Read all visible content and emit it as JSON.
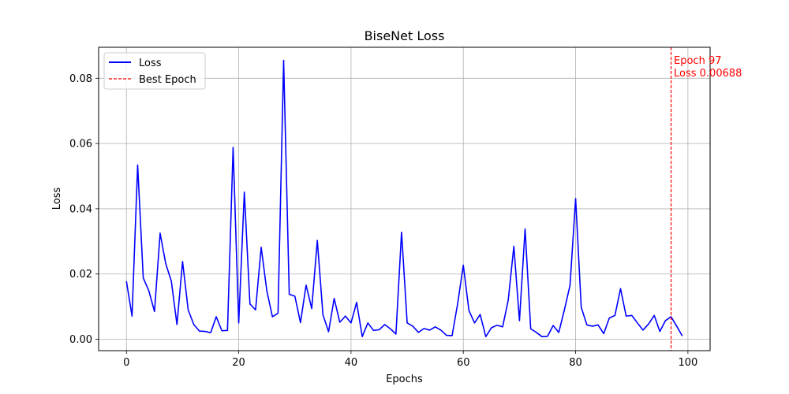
{
  "chart_data": {
    "type": "line",
    "title": "BiseNet Loss",
    "xlabel": "Epochs",
    "ylabel": "Loss",
    "xlim": [
      -4.95,
      103.95
    ],
    "ylim": [
      -0.0035,
      0.0895
    ],
    "xticks": [
      0,
      20,
      40,
      60,
      80,
      100
    ],
    "yticks": [
      0.0,
      0.02,
      0.04,
      0.06,
      0.08
    ],
    "xtick_labels": [
      "0",
      "20",
      "40",
      "60",
      "80",
      "100"
    ],
    "ytick_labels": [
      "0.00",
      "0.02",
      "0.04",
      "0.06",
      "0.08"
    ],
    "grid": true,
    "legend_position": "top-left",
    "series": [
      {
        "name": "Loss",
        "color": "#0000ff",
        "x": [
          0,
          1,
          2,
          3,
          4,
          5,
          6,
          7,
          8,
          9,
          10,
          11,
          12,
          13,
          14,
          15,
          16,
          17,
          18,
          19,
          20,
          21,
          22,
          23,
          24,
          25,
          26,
          27,
          28,
          29,
          30,
          31,
          32,
          33,
          34,
          35,
          36,
          37,
          38,
          39,
          40,
          41,
          42,
          43,
          44,
          45,
          46,
          47,
          48,
          49,
          50,
          51,
          52,
          53,
          54,
          55,
          56,
          57,
          58,
          59,
          60,
          61,
          62,
          63,
          64,
          65,
          66,
          67,
          68,
          69,
          70,
          71,
          72,
          73,
          74,
          75,
          76,
          77,
          78,
          79,
          80,
          81,
          82,
          83,
          84,
          85,
          86,
          87,
          88,
          89,
          90,
          91,
          92,
          93,
          94,
          95,
          96,
          97,
          98,
          99
        ],
        "y": [
          0.0178,
          0.0071,
          0.0534,
          0.0188,
          0.0148,
          0.0085,
          0.0325,
          0.0232,
          0.0178,
          0.0045,
          0.0238,
          0.009,
          0.0045,
          0.0025,
          0.0024,
          0.002,
          0.0069,
          0.0026,
          0.0027,
          0.0588,
          0.005,
          0.0451,
          0.0108,
          0.009,
          0.0282,
          0.0149,
          0.0069,
          0.008,
          0.0855,
          0.0138,
          0.0132,
          0.0051,
          0.0166,
          0.0094,
          0.0303,
          0.0075,
          0.0023,
          0.0125,
          0.0052,
          0.0071,
          0.005,
          0.0113,
          0.0008,
          0.005,
          0.0027,
          0.0029,
          0.0045,
          0.0032,
          0.0016,
          0.0328,
          0.005,
          0.004,
          0.0021,
          0.0033,
          0.0028,
          0.0038,
          0.0028,
          0.0012,
          0.0011,
          0.011,
          0.0227,
          0.0088,
          0.005,
          0.0076,
          0.0008,
          0.0035,
          0.0043,
          0.0038,
          0.012,
          0.0285,
          0.0057,
          0.0338,
          0.0032,
          0.0021,
          0.0008,
          0.0009,
          0.0042,
          0.0021,
          0.009,
          0.0165,
          0.0431,
          0.0098,
          0.0044,
          0.004,
          0.0044,
          0.0017,
          0.0065,
          0.0073,
          0.0155,
          0.0071,
          0.0073,
          0.005,
          0.0028,
          0.0047,
          0.0073,
          0.0024,
          0.0057,
          0.0069,
          0.004,
          0.001
        ]
      },
      {
        "name": "Best Epoch",
        "color": "#ff0000",
        "style": "dashed",
        "x": 97
      }
    ],
    "annotation": {
      "line1": "Epoch 97",
      "line2": "Loss 0.00688",
      "color": "#ff0000"
    }
  }
}
